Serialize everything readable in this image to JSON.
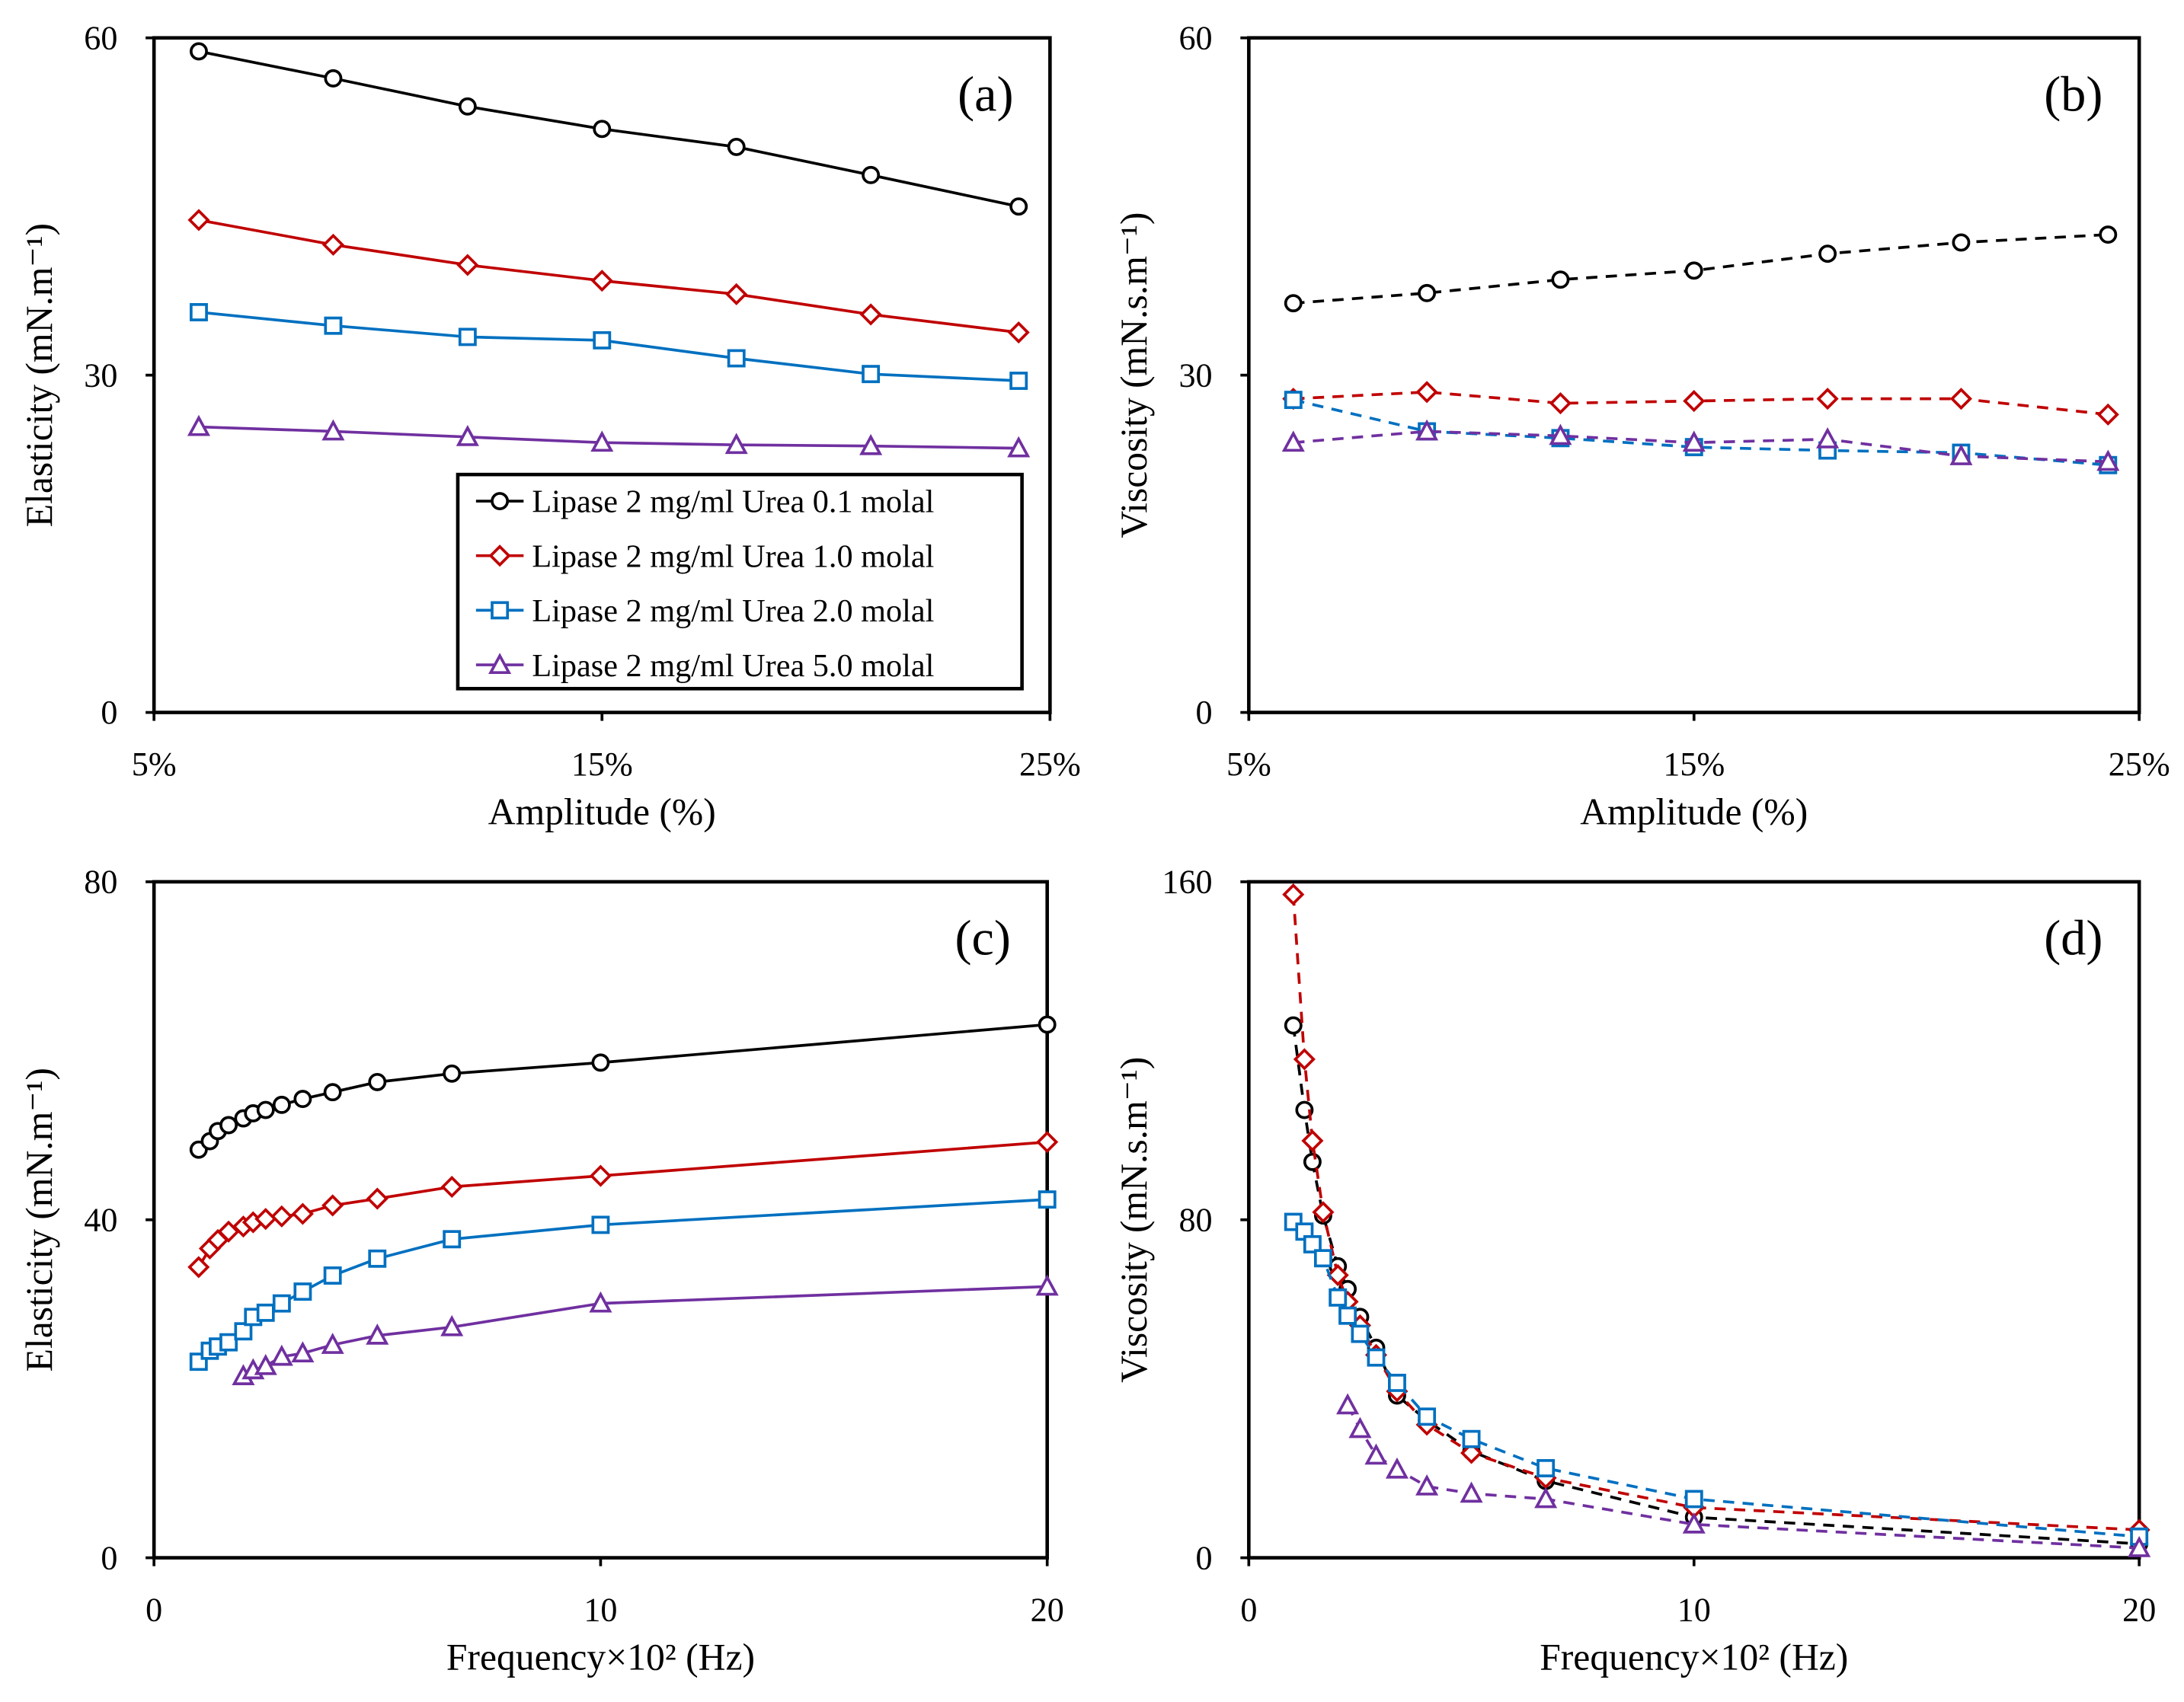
{
  "legend": [
    "Lipase 2 mg/ml Urea 0.1 molal",
    "Lipase 2 mg/ml Urea 1.0 molal",
    "Lipase 2 mg/ml Urea 2.0 molal",
    "Lipase 2 mg/ml Urea 5.0 molal"
  ],
  "colors": {
    "black": "#000000",
    "red": "#c00000",
    "blue": "#0070c0",
    "purple": "#7030a0"
  },
  "chart_data": [
    {
      "type": "line",
      "panel_label": "(a)",
      "line_style": "solid",
      "xlabel": "Amplitude (%)",
      "ylabel": "Elasticity (mN.m⁻¹)",
      "xlim": [
        5,
        25
      ],
      "ylim": [
        0,
        60
      ],
      "xticks": [
        5,
        15,
        25
      ],
      "xtick_labels": [
        "5%",
        "15%",
        "25%"
      ],
      "yticks": [
        0,
        30,
        60
      ],
      "ytick_labels": [
        "0",
        "30",
        "60"
      ],
      "legend_position": "bottom-right",
      "grid": false,
      "series": [
        {
          "name": "Lipase 2 mg/ml Urea 0.1 molal",
          "marker": "circle",
          "color": "#000000",
          "x": [
            6,
            9,
            12,
            15,
            18,
            21,
            24.3
          ],
          "y": [
            58.8,
            56.4,
            53.9,
            51.9,
            50.3,
            47.8,
            45.0
          ]
        },
        {
          "name": "Lipase 2 mg/ml Urea 1.0 molal",
          "marker": "diamond",
          "color": "#c00000",
          "x": [
            6,
            9,
            12,
            15,
            18,
            21,
            24.3
          ],
          "y": [
            43.8,
            41.6,
            39.8,
            38.4,
            37.2,
            35.4,
            33.8
          ]
        },
        {
          "name": "Lipase 2 mg/ml Urea 2.0 molal",
          "marker": "square",
          "color": "#0070c0",
          "x": [
            6,
            9,
            12,
            15,
            18,
            21,
            24.3
          ],
          "y": [
            35.6,
            34.4,
            33.4,
            33.1,
            31.5,
            30.1,
            29.5
          ]
        },
        {
          "name": "Lipase 2 mg/ml Urea 5.0 molal",
          "marker": "triangle",
          "color": "#7030a0",
          "x": [
            6,
            9,
            12,
            15,
            18,
            21,
            24.3
          ],
          "y": [
            25.4,
            25.0,
            24.5,
            24.0,
            23.8,
            23.7,
            23.5
          ]
        }
      ]
    },
    {
      "type": "line",
      "panel_label": "(b)",
      "line_style": "dashed",
      "xlabel": "Amplitude (%)",
      "ylabel": "Viscosity (mN.s.m⁻¹)",
      "xlim": [
        5,
        25
      ],
      "ylim": [
        0,
        60
      ],
      "xticks": [
        5,
        15,
        25
      ],
      "xtick_labels": [
        "5%",
        "15%",
        "25%"
      ],
      "yticks": [
        0,
        30,
        60
      ],
      "ytick_labels": [
        "0",
        "30",
        "60"
      ],
      "grid": false,
      "series": [
        {
          "name": "Lipase 2 mg/ml Urea 0.1 molal",
          "marker": "circle",
          "color": "#000000",
          "x": [
            6,
            9,
            12,
            15,
            18,
            21,
            24.3
          ],
          "y": [
            36.4,
            37.3,
            38.5,
            39.3,
            40.8,
            41.8,
            42.5
          ]
        },
        {
          "name": "Lipase 2 mg/ml Urea 1.0 molal",
          "marker": "diamond",
          "color": "#c00000",
          "x": [
            6,
            9,
            12,
            15,
            18,
            21,
            24.3
          ],
          "y": [
            27.9,
            28.5,
            27.5,
            27.7,
            27.9,
            27.9,
            26.5
          ]
        },
        {
          "name": "Lipase 2 mg/ml Urea 2.0 molal",
          "marker": "square",
          "color": "#0070c0",
          "x": [
            6,
            9,
            12,
            15,
            18,
            21,
            24.3
          ],
          "y": [
            27.8,
            25.0,
            24.4,
            23.6,
            23.3,
            23.1,
            22.0
          ]
        },
        {
          "name": "Lipase 2 mg/ml Urea 5.0 molal",
          "marker": "triangle",
          "color": "#7030a0",
          "x": [
            6,
            9,
            12,
            15,
            18,
            21,
            24.3
          ],
          "y": [
            24.0,
            25.0,
            24.6,
            24.0,
            24.3,
            22.8,
            22.3
          ]
        }
      ]
    },
    {
      "type": "line",
      "panel_label": "(c)",
      "line_style": "solid",
      "xlabel": "Frequency×10² (Hz)",
      "ylabel": "Elasticity (mN.m⁻¹)",
      "xlim": [
        0,
        20
      ],
      "ylim": [
        0,
        80
      ],
      "xticks": [
        0,
        10,
        20
      ],
      "xtick_labels": [
        "0",
        "10",
        "20"
      ],
      "yticks": [
        0,
        40,
        80
      ],
      "ytick_labels": [
        "0",
        "40",
        "80"
      ],
      "grid": false,
      "series": [
        {
          "name": "Lipase 2 mg/ml Urea 0.1 molal",
          "marker": "circle",
          "color": "#000000",
          "x": [
            1,
            1.25,
            1.43,
            1.67,
            2,
            2.22,
            2.5,
            2.86,
            3.33,
            4,
            5,
            6.67,
            10,
            20
          ],
          "y": [
            48.3,
            49.3,
            50.5,
            51.2,
            52.0,
            52.6,
            53.0,
            53.6,
            54.3,
            55.1,
            56.3,
            57.3,
            58.6,
            63.1
          ]
        },
        {
          "name": "Lipase 2 mg/ml Urea 1.0 molal",
          "marker": "diamond",
          "color": "#c00000",
          "x": [
            1,
            1.25,
            1.43,
            1.67,
            2,
            2.22,
            2.5,
            2.86,
            3.33,
            4,
            5,
            6.67,
            10,
            20
          ],
          "y": [
            34.4,
            36.6,
            37.6,
            38.6,
            39.2,
            39.7,
            40.1,
            40.4,
            40.7,
            41.7,
            42.5,
            43.9,
            45.2,
            49.2
          ]
        },
        {
          "name": "Lipase 2 mg/ml Urea 2.0 molal",
          "marker": "square",
          "color": "#0070c0",
          "x": [
            1,
            1.25,
            1.43,
            1.67,
            2,
            2.22,
            2.5,
            2.86,
            3.33,
            4,
            5,
            6.67,
            10,
            20
          ],
          "y": [
            23.2,
            24.5,
            25.0,
            25.5,
            26.8,
            28.5,
            29.0,
            30.1,
            31.5,
            33.4,
            35.4,
            37.7,
            39.4,
            42.4
          ]
        },
        {
          "name": "Lipase 2 mg/ml Urea 5.0 molal",
          "marker": "triangle",
          "color": "#7030a0",
          "x": [
            2,
            2.22,
            2.5,
            2.86,
            3.33,
            4,
            5,
            6.67,
            10,
            20
          ],
          "y": [
            21.5,
            22.2,
            22.7,
            23.8,
            24.2,
            25.2,
            26.3,
            27.3,
            30.1,
            32.1
          ]
        }
      ]
    },
    {
      "type": "line",
      "panel_label": "(d)",
      "line_style": "dashed",
      "xlabel": "Frequency×10² (Hz)",
      "ylabel": "Viscosity (mN.s.m⁻¹)",
      "xlim": [
        0,
        20
      ],
      "ylim": [
        0,
        160
      ],
      "xticks": [
        0,
        10,
        20
      ],
      "xtick_labels": [
        "0",
        "10",
        "20"
      ],
      "yticks": [
        0,
        80,
        160
      ],
      "ytick_labels": [
        "0",
        "80",
        "160"
      ],
      "grid": false,
      "series": [
        {
          "name": "Lipase 2 mg/ml Urea 0.1 molal",
          "marker": "circle",
          "color": "#000000",
          "x": [
            1,
            1.25,
            1.43,
            1.67,
            2,
            2.22,
            2.5,
            2.86,
            3.33,
            4,
            5,
            6.67,
            10,
            20
          ],
          "y": [
            126,
            106,
            93.7,
            81,
            69,
            63.6,
            57,
            49.7,
            38.4,
            32.5,
            25.2,
            18.2,
            9.6,
            3.3
          ]
        },
        {
          "name": "Lipase 2 mg/ml Urea 1.0 molal",
          "marker": "diamond",
          "color": "#c00000",
          "x": [
            1,
            1.25,
            1.43,
            1.67,
            2,
            2.22,
            2.5,
            2.86,
            3.33,
            4,
            5,
            6.67,
            10,
            20
          ],
          "y": [
            157,
            118,
            98.7,
            81.8,
            66.9,
            60.6,
            55,
            48,
            39.4,
            31.5,
            24.8,
            18.9,
            11.9,
            6.6
          ]
        },
        {
          "name": "Lipase 2 mg/ml Urea 2.0 molal",
          "marker": "square",
          "color": "#0070c0",
          "x": [
            1,
            1.25,
            1.43,
            1.67,
            2,
            2.22,
            2.5,
            2.86,
            3.33,
            4,
            5,
            6.67,
            10,
            20
          ],
          "y": [
            79.5,
            77.2,
            74.2,
            70.9,
            61.6,
            57.3,
            53,
            47.4,
            41.4,
            33.4,
            28.1,
            21.2,
            13.9,
            5.0
          ]
        },
        {
          "name": "Lipase 2 mg/ml Urea 5.0 molal",
          "marker": "triangle",
          "color": "#7030a0",
          "x": [
            2.22,
            2.5,
            2.86,
            3.33,
            4,
            5,
            6.67,
            10,
            20
          ],
          "y": [
            36.1,
            30.5,
            24.2,
            20.9,
            16.9,
            15.2,
            13.9,
            7.9,
            2.3
          ]
        }
      ]
    }
  ]
}
